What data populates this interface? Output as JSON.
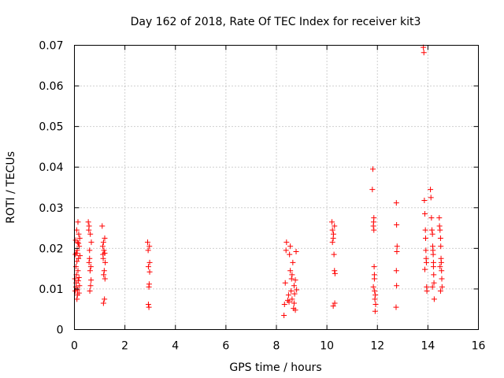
{
  "chart_data": {
    "type": "scatter",
    "title": "Day 162 of 2018, Rate Of TEC Index for receiver kit3",
    "xlabel": "GPS time / hours",
    "ylabel": "ROTI / TECUs",
    "xlim": [
      0,
      16
    ],
    "ylim": [
      0,
      0.07
    ],
    "xticks": [
      0,
      2,
      4,
      6,
      8,
      10,
      12,
      14,
      16
    ],
    "xtick_labels": [
      "0",
      "2",
      "4",
      "6",
      "8",
      "10",
      "12",
      "14",
      "16"
    ],
    "yticks": [
      0,
      0.01,
      0.02,
      0.03,
      0.04,
      0.05,
      0.06,
      0.07
    ],
    "ytick_labels": [
      "0",
      "0.01",
      "0.02",
      "0.03",
      "0.04",
      "0.05",
      "0.06",
      "0.07"
    ],
    "grid": true,
    "marker": "+",
    "color": "#ff0000",
    "series": [
      {
        "name": "ROTI",
        "points": [
          [
            0.02,
            0.0125
          ],
          [
            0.03,
            0.0095
          ],
          [
            0.04,
            0.0185
          ],
          [
            0.05,
            0.022
          ],
          [
            0.06,
            0.0105
          ],
          [
            0.07,
            0.0115
          ],
          [
            0.08,
            0.0135
          ],
          [
            0.09,
            0.0245
          ],
          [
            0.1,
            0.0075
          ],
          [
            0.11,
            0.0195
          ],
          [
            0.12,
            0.0085
          ],
          [
            0.13,
            0.0215
          ],
          [
            0.14,
            0.0265
          ],
          [
            0.15,
            0.012
          ],
          [
            0.16,
            0.0175
          ],
          [
            0.17,
            0.0235
          ],
          [
            0.18,
            0.009
          ],
          [
            0.19,
            0.0205
          ],
          [
            0.2,
            0.0108
          ],
          [
            0.21,
            0.0225
          ],
          [
            0.22,
            0.0182
          ],
          [
            0.06,
            0.0155
          ],
          [
            0.1,
            0.0168
          ],
          [
            0.14,
            0.0145
          ],
          [
            0.18,
            0.0128
          ],
          [
            0.12,
            0.0098
          ],
          [
            0.08,
            0.0188
          ],
          [
            0.16,
            0.0212
          ],
          [
            0.55,
            0.0265
          ],
          [
            0.57,
            0.0245
          ],
          [
            0.58,
            0.0165
          ],
          [
            0.6,
            0.0175
          ],
          [
            0.61,
            0.0095
          ],
          [
            0.62,
            0.0145
          ],
          [
            0.63,
            0.0235
          ],
          [
            0.64,
            0.0108
          ],
          [
            0.65,
            0.0155
          ],
          [
            0.66,
            0.0122
          ],
          [
            0.67,
            0.0215
          ],
          [
            0.6,
            0.0195
          ],
          [
            0.58,
            0.0255
          ],
          [
            1.1,
            0.0255
          ],
          [
            1.12,
            0.0205
          ],
          [
            1.13,
            0.0185
          ],
          [
            1.14,
            0.0175
          ],
          [
            1.15,
            0.0065
          ],
          [
            1.16,
            0.0135
          ],
          [
            1.17,
            0.0195
          ],
          [
            1.18,
            0.0145
          ],
          [
            1.19,
            0.0075
          ],
          [
            1.2,
            0.0225
          ],
          [
            1.21,
            0.0125
          ],
          [
            1.22,
            0.0165
          ],
          [
            1.15,
            0.0215
          ],
          [
            1.2,
            0.0188
          ],
          [
            2.9,
            0.0215
          ],
          [
            2.92,
            0.0195
          ],
          [
            2.93,
            0.0155
          ],
          [
            2.95,
            0.0105
          ],
          [
            2.96,
            0.0112
          ],
          [
            2.97,
            0.0205
          ],
          [
            2.98,
            0.0165
          ],
          [
            2.95,
            0.0055
          ],
          [
            2.93,
            0.0062
          ],
          [
            2.98,
            0.0142
          ],
          [
            8.3,
            0.0035
          ],
          [
            8.32,
            0.0062
          ],
          [
            8.35,
            0.0115
          ],
          [
            8.38,
            0.0195
          ],
          [
            8.4,
            0.0215
          ],
          [
            8.45,
            0.0072
          ],
          [
            8.48,
            0.0085
          ],
          [
            8.5,
            0.0068
          ],
          [
            8.52,
            0.0185
          ],
          [
            8.55,
            0.0145
          ],
          [
            8.58,
            0.0095
          ],
          [
            8.6,
            0.0125
          ],
          [
            8.62,
            0.0075
          ],
          [
            8.65,
            0.0165
          ],
          [
            8.68,
            0.0052
          ],
          [
            8.7,
            0.0108
          ],
          [
            8.72,
            0.0088
          ],
          [
            8.75,
            0.0122
          ],
          [
            8.78,
            0.0192
          ],
          [
            8.8,
            0.0098
          ],
          [
            8.55,
            0.0205
          ],
          [
            8.62,
            0.0135
          ],
          [
            8.7,
            0.0065
          ],
          [
            8.75,
            0.0048
          ],
          [
            10.2,
            0.0265
          ],
          [
            10.22,
            0.0245
          ],
          [
            10.25,
            0.0225
          ],
          [
            10.26,
            0.0235
          ],
          [
            10.28,
            0.0185
          ],
          [
            10.3,
            0.0145
          ],
          [
            10.31,
            0.0065
          ],
          [
            10.32,
            0.0138
          ],
          [
            10.25,
            0.0058
          ],
          [
            10.22,
            0.0215
          ],
          [
            10.3,
            0.0255
          ],
          [
            11.8,
            0.0345
          ],
          [
            11.82,
            0.0395
          ],
          [
            11.84,
            0.0255
          ],
          [
            11.85,
            0.0265
          ],
          [
            11.86,
            0.0275
          ],
          [
            11.87,
            0.0155
          ],
          [
            11.88,
            0.0135
          ],
          [
            11.89,
            0.0095
          ],
          [
            11.9,
            0.0075
          ],
          [
            11.91,
            0.0045
          ],
          [
            11.92,
            0.0085
          ],
          [
            11.93,
            0.0062
          ],
          [
            11.86,
            0.0245
          ],
          [
            11.88,
            0.0125
          ],
          [
            11.84,
            0.0105
          ],
          [
            12.75,
            0.0312
          ],
          [
            12.76,
            0.0258
          ],
          [
            12.78,
            0.0205
          ],
          [
            12.77,
            0.0192
          ],
          [
            12.75,
            0.0145
          ],
          [
            12.76,
            0.0108
          ],
          [
            12.74,
            0.0055
          ],
          [
            13.82,
            0.0695
          ],
          [
            13.84,
            0.0682
          ],
          [
            13.86,
            0.0318
          ],
          [
            13.88,
            0.0285
          ],
          [
            13.9,
            0.0245
          ],
          [
            13.91,
            0.0225
          ],
          [
            13.92,
            0.0195
          ],
          [
            13.93,
            0.0175
          ],
          [
            13.94,
            0.0165
          ],
          [
            13.95,
            0.0105
          ],
          [
            13.96,
            0.0095
          ],
          [
            13.88,
            0.0148
          ],
          [
            14.1,
            0.0345
          ],
          [
            14.12,
            0.0325
          ],
          [
            14.14,
            0.0275
          ],
          [
            14.16,
            0.0245
          ],
          [
            14.18,
            0.0235
          ],
          [
            14.19,
            0.0205
          ],
          [
            14.2,
            0.0195
          ],
          [
            14.21,
            0.0185
          ],
          [
            14.22,
            0.0165
          ],
          [
            14.23,
            0.0135
          ],
          [
            14.24,
            0.0115
          ],
          [
            14.25,
            0.0075
          ],
          [
            14.18,
            0.0105
          ],
          [
            14.22,
            0.0155
          ],
          [
            14.45,
            0.0275
          ],
          [
            14.46,
            0.0255
          ],
          [
            14.48,
            0.0245
          ],
          [
            14.5,
            0.0225
          ],
          [
            14.51,
            0.0205
          ],
          [
            14.52,
            0.0175
          ],
          [
            14.53,
            0.0165
          ],
          [
            14.54,
            0.0145
          ],
          [
            14.55,
            0.0125
          ],
          [
            14.56,
            0.0105
          ],
          [
            14.5,
            0.0095
          ],
          [
            14.48,
            0.0155
          ]
        ]
      }
    ]
  }
}
